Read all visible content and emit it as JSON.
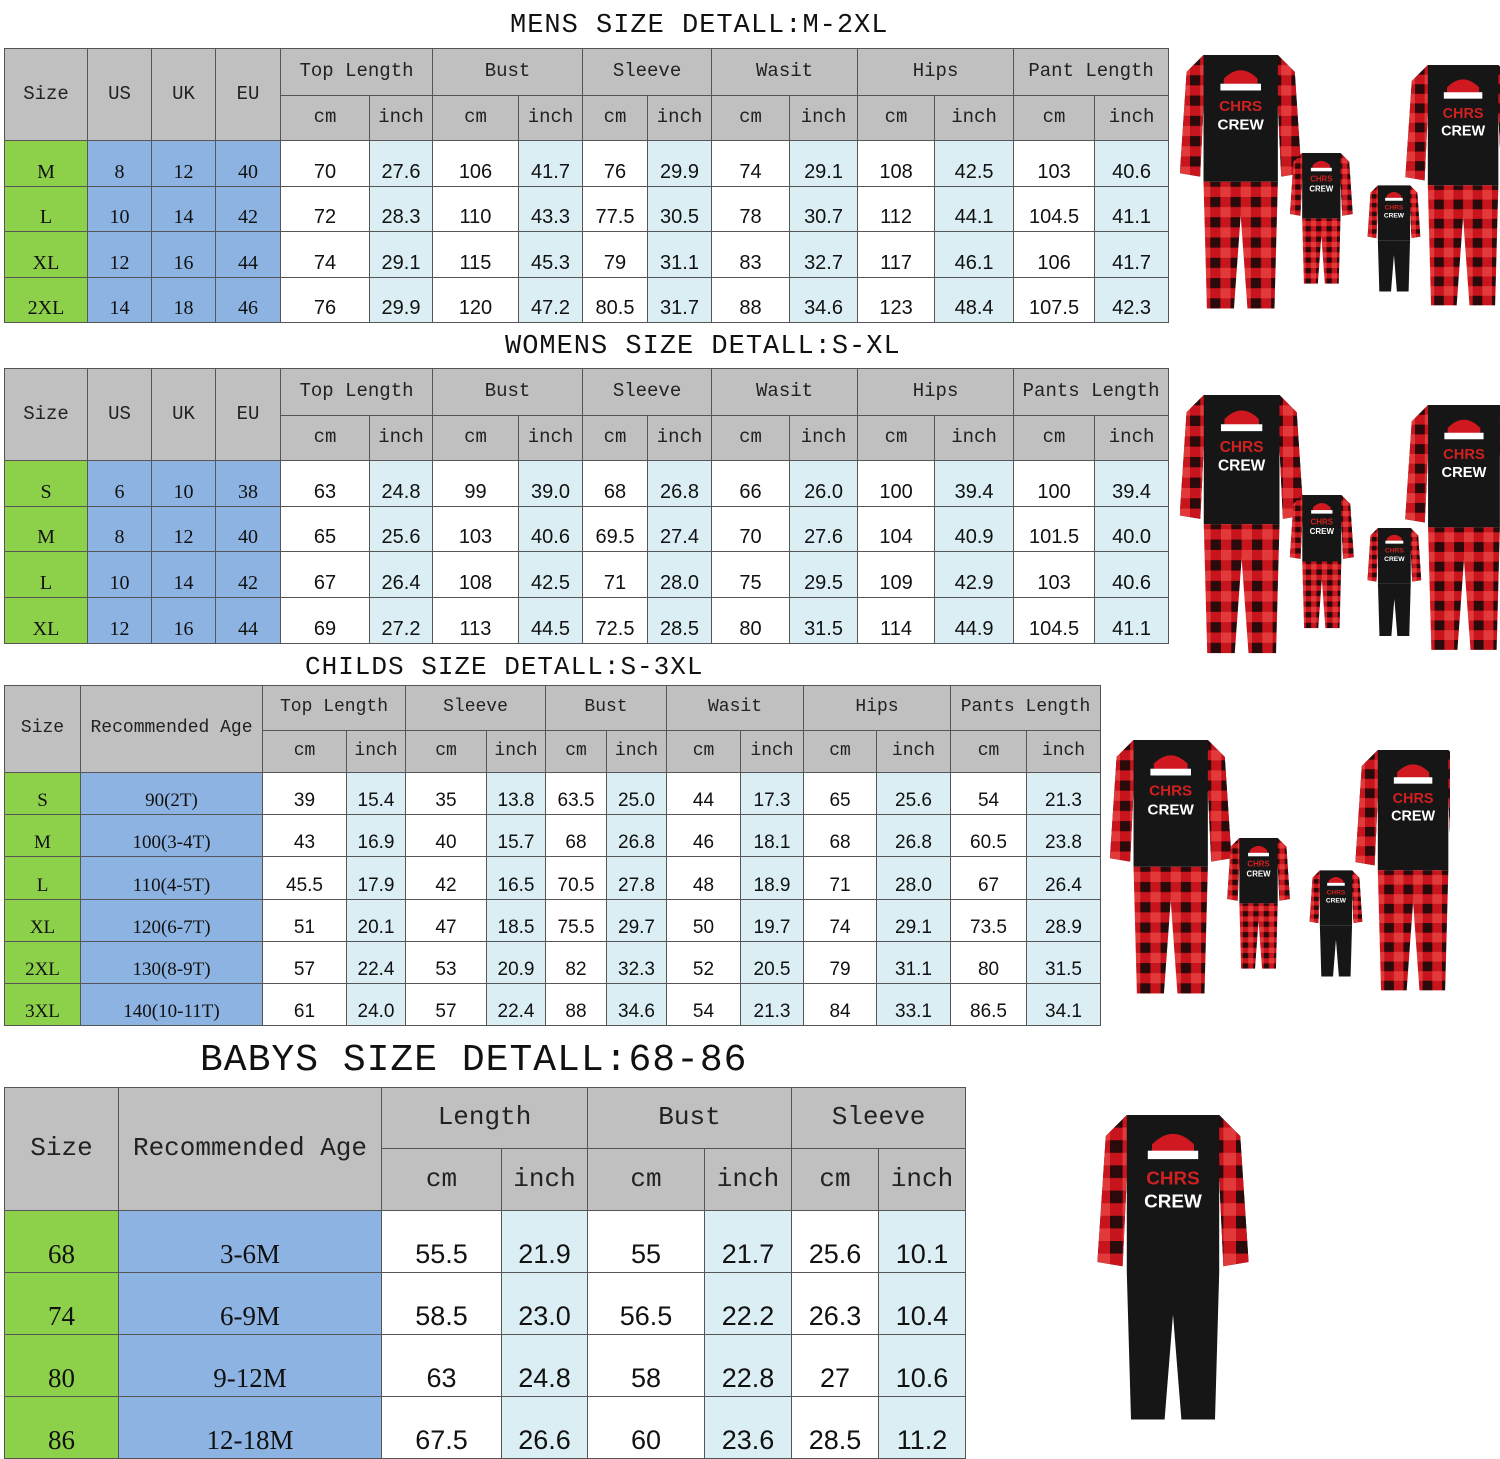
{
  "colors": {
    "header": "#c0c0c0",
    "size_col": "#8dd14b",
    "region_col": "#8db3e2",
    "inch_col": "#daeef3"
  },
  "tables": [
    {
      "key": "mens",
      "title": "MENS SIZE DETALL:M-2XL",
      "fixed_headers": [
        "Size",
        "US",
        "UK",
        "EU"
      ],
      "groups": [
        "Top Length",
        "Bust",
        "Sleeve",
        "Wasit",
        "Hips",
        "Pant Length"
      ],
      "units": [
        "cm",
        "inch"
      ],
      "rows": [
        [
          "M",
          "8",
          "12",
          "40",
          "70",
          "27.6",
          "106",
          "41.7",
          "76",
          "29.9",
          "74",
          "29.1",
          "108",
          "42.5",
          "103",
          "40.6"
        ],
        [
          "L",
          "10",
          "14",
          "42",
          "72",
          "28.3",
          "110",
          "43.3",
          "77.5",
          "30.5",
          "78",
          "30.7",
          "112",
          "44.1",
          "104.5",
          "41.1"
        ],
        [
          "XL",
          "12",
          "16",
          "44",
          "74",
          "29.1",
          "115",
          "45.3",
          "79",
          "31.1",
          "83",
          "32.7",
          "117",
          "46.1",
          "106",
          "41.7"
        ],
        [
          "2XL",
          "14",
          "18",
          "46",
          "76",
          "29.9",
          "120",
          "47.2",
          "80.5",
          "31.7",
          "88",
          "34.6",
          "123",
          "48.4",
          "107.5",
          "42.3"
        ]
      ]
    },
    {
      "key": "womens",
      "title": "WOMENS SIZE DETALL:S-XL",
      "fixed_headers": [
        "Size",
        "US",
        "UK",
        "EU"
      ],
      "groups": [
        "Top Length",
        "Bust",
        "Sleeve",
        "Wasit",
        "Hips",
        "Pants Length"
      ],
      "units": [
        "cm",
        "inch"
      ],
      "rows": [
        [
          "S",
          "6",
          "10",
          "38",
          "63",
          "24.8",
          "99",
          "39.0",
          "68",
          "26.8",
          "66",
          "26.0",
          "100",
          "39.4",
          "100",
          "39.4"
        ],
        [
          "M",
          "8",
          "12",
          "40",
          "65",
          "25.6",
          "103",
          "40.6",
          "69.5",
          "27.4",
          "70",
          "27.6",
          "104",
          "40.9",
          "101.5",
          "40.0"
        ],
        [
          "L",
          "10",
          "14",
          "42",
          "67",
          "26.4",
          "108",
          "42.5",
          "71",
          "28.0",
          "75",
          "29.5",
          "109",
          "42.9",
          "103",
          "40.6"
        ],
        [
          "XL",
          "12",
          "16",
          "44",
          "69",
          "27.2",
          "113",
          "44.5",
          "72.5",
          "28.5",
          "80",
          "31.5",
          "114",
          "44.9",
          "104.5",
          "41.1"
        ]
      ]
    },
    {
      "key": "childs",
      "title": "CHILDS SIZE DETALL:S-3XL",
      "fixed_headers": [
        "Size",
        "Recommended Age"
      ],
      "groups": [
        "Top Length",
        "Sleeve",
        "Bust",
        "Wasit",
        "Hips",
        "Pants Length"
      ],
      "units": [
        "cm",
        "inch"
      ],
      "rows": [
        [
          "S",
          "90(2T)",
          "39",
          "15.4",
          "35",
          "13.8",
          "63.5",
          "25.0",
          "44",
          "17.3",
          "65",
          "25.6",
          "54",
          "21.3"
        ],
        [
          "M",
          "100(3-4T)",
          "43",
          "16.9",
          "40",
          "15.7",
          "68",
          "26.8",
          "46",
          "18.1",
          "68",
          "26.8",
          "60.5",
          "23.8"
        ],
        [
          "L",
          "110(4-5T)",
          "45.5",
          "17.9",
          "42",
          "16.5",
          "70.5",
          "27.8",
          "48",
          "18.9",
          "71",
          "28.0",
          "67",
          "26.4"
        ],
        [
          "XL",
          "120(6-7T)",
          "51",
          "20.1",
          "47",
          "18.5",
          "75.5",
          "29.7",
          "50",
          "19.7",
          "74",
          "29.1",
          "73.5",
          "28.9"
        ],
        [
          "2XL",
          "130(8-9T)",
          "57",
          "22.4",
          "53",
          "20.9",
          "82",
          "32.3",
          "52",
          "20.5",
          "79",
          "31.1",
          "80",
          "31.5"
        ],
        [
          "3XL",
          "140(10-11T)",
          "61",
          "24.0",
          "57",
          "22.4",
          "88",
          "34.6",
          "54",
          "21.3",
          "84",
          "33.1",
          "86.5",
          "34.1"
        ]
      ]
    },
    {
      "key": "babys",
      "title": "BABYS SIZE DETALL:68-86",
      "fixed_headers": [
        "Size",
        "Recommended Age"
      ],
      "groups": [
        "Length",
        "Bust",
        "Sleeve"
      ],
      "units": [
        "cm",
        "inch"
      ],
      "rows": [
        [
          "68",
          "3-6M",
          "55.5",
          "21.9",
          "55",
          "21.7",
          "25.6",
          "10.1"
        ],
        [
          "74",
          "6-9M",
          "58.5",
          "23.0",
          "56.5",
          "22.2",
          "26.3",
          "10.4"
        ],
        [
          "80",
          "9-12M",
          "63",
          "24.8",
          "58",
          "22.8",
          "27",
          "10.6"
        ],
        [
          "86",
          "12-18M",
          "67.5",
          "26.6",
          "60",
          "23.6",
          "28.5",
          "11.2"
        ]
      ]
    }
  ],
  "product_images": [
    {
      "alt": "family pajama set",
      "logo_text": "CHRISTMAS CREW"
    },
    {
      "alt": "family pajama set",
      "logo_text": "CHRISTMAS CREW"
    },
    {
      "alt": "family pajama set",
      "logo_text": "CHRISTMAS CREW"
    },
    {
      "alt": "baby romper",
      "logo_text": "CHRISTMAS CREW"
    }
  ]
}
